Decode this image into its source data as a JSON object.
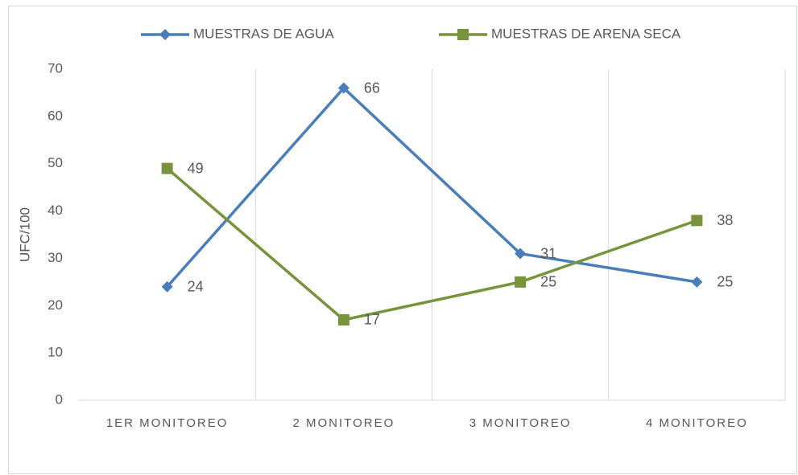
{
  "chart_data": {
    "type": "line",
    "y_label": "UFC/100",
    "categories": [
      "1ER MONITOREO",
      "2 MONITOREO",
      "3 MONITOREO",
      "4 MONITOREO"
    ],
    "series": [
      {
        "name": "MUESTRAS DE AGUA",
        "color": "#4a7ebb",
        "marker": "diamond",
        "values": [
          24,
          66,
          31,
          25
        ]
      },
      {
        "name": "MUESTRAS DE ARENA SECA",
        "color": "#77933c",
        "marker": "square",
        "values": [
          49,
          17,
          25,
          38
        ]
      }
    ],
    "ylim": [
      0,
      70
    ],
    "yticks": [
      0,
      10,
      20,
      30,
      40,
      50,
      60,
      70
    ],
    "grid": "x",
    "legend": "top"
  }
}
